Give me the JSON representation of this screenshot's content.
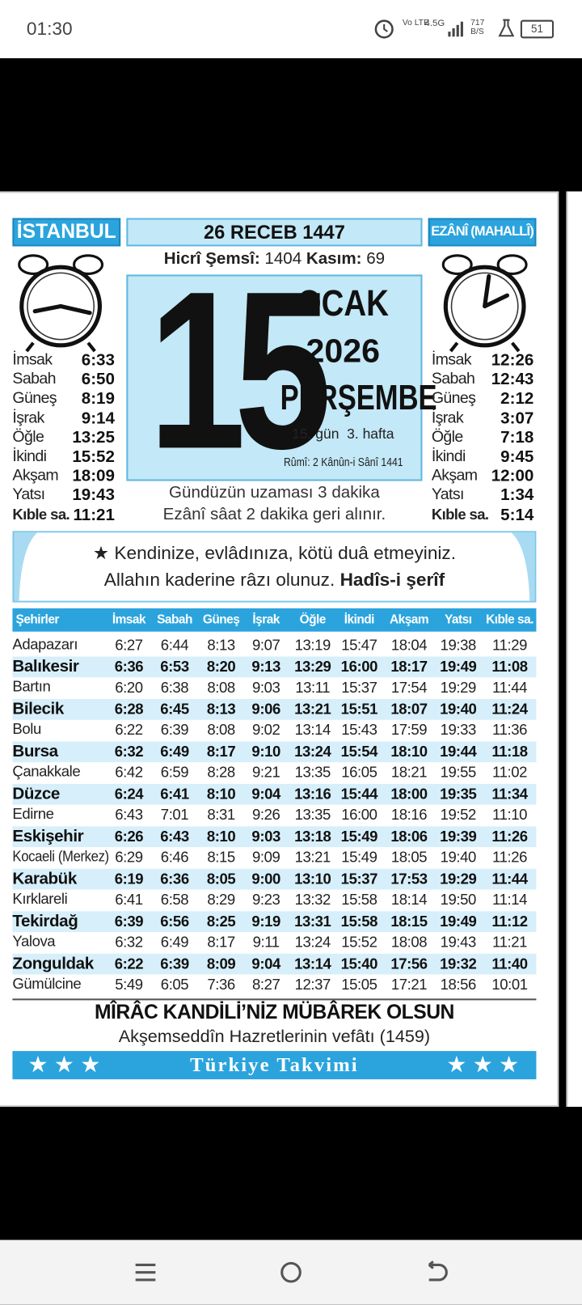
{
  "status_bar": {
    "time": "01:30",
    "network": "Vo LTE",
    "signal": "4.5G",
    "speed": "717 B/S",
    "battery": "51"
  },
  "calendar": {
    "city": "İSTANBUL",
    "hijri_date": "26 RECEB 1447",
    "ezani": "EZÂNÎ (MAHALLÎ)",
    "hicri_semsi_label": "Hicrî Şemsî:",
    "hicri_semsi": "1404",
    "kasim_label": "Kasım:",
    "kasim": "69",
    "day": "15",
    "month": "OCAK",
    "year": "2026",
    "weekday": "PERŞEMBE",
    "day_info": "15. gün  3. hafta",
    "rumi": "Rûmî: 2 Kânûn-i Sânî 1441",
    "left_times": [
      [
        "İmsak",
        "6:33"
      ],
      [
        "Sabah",
        "6:50"
      ],
      [
        "Güneş",
        "8:19"
      ],
      [
        "İşrak",
        "9:14"
      ],
      [
        "Öğle",
        "13:25"
      ],
      [
        "İkindi",
        "15:52"
      ],
      [
        "Akşam",
        "18:09"
      ],
      [
        "Yatsı",
        "19:43"
      ]
    ],
    "left_kible": [
      "Kıble sa.",
      "11:21"
    ],
    "right_times": [
      [
        "İmsak",
        "12:26"
      ],
      [
        "Sabah",
        "12:43"
      ],
      [
        "Güneş",
        "2:12"
      ],
      [
        "İşrak",
        "3:07"
      ],
      [
        "Öğle",
        "7:18"
      ],
      [
        "İkindi",
        "9:45"
      ],
      [
        "Akşam",
        "12:00"
      ],
      [
        "Yatsı",
        "1:34"
      ]
    ],
    "right_kible": [
      "Kıble sa.",
      "5:14"
    ],
    "notes": [
      "Gündüzün uzaması 3 dakika",
      "Ezânî sâat 2 dakika geri alınır."
    ],
    "quote_line1": "★ Kendinize, evlâdınıza, kötü duâ etmeyiniz.",
    "quote_line2": "Allahın kaderine râzı olunuz.",
    "quote_source": "Hadîs-i şerîf",
    "table": {
      "header": [
        "Şehirler",
        "İmsak",
        "Sabah",
        "Güneş",
        "İşrak",
        "Öğle",
        "İkindi",
        "Akşam",
        "Yatsı",
        "Kıble sa."
      ],
      "rows": [
        [
          "Adapazarı",
          "6:27",
          "6:44",
          "8:13",
          "9:07",
          "13:19",
          "15:47",
          "18:04",
          "19:38",
          "11:29"
        ],
        [
          "Balıkesir",
          "6:36",
          "6:53",
          "8:20",
          "9:13",
          "13:29",
          "16:00",
          "18:17",
          "19:49",
          "11:08"
        ],
        [
          "Bartın",
          "6:20",
          "6:38",
          "8:08",
          "9:03",
          "13:11",
          "15:37",
          "17:54",
          "19:29",
          "11:44"
        ],
        [
          "Bilecik",
          "6:28",
          "6:45",
          "8:13",
          "9:06",
          "13:21",
          "15:51",
          "18:07",
          "19:40",
          "11:24"
        ],
        [
          "Bolu",
          "6:22",
          "6:39",
          "8:08",
          "9:02",
          "13:14",
          "15:43",
          "17:59",
          "19:33",
          "11:36"
        ],
        [
          "Bursa",
          "6:32",
          "6:49",
          "8:17",
          "9:10",
          "13:24",
          "15:54",
          "18:10",
          "19:44",
          "11:18"
        ],
        [
          "Çanakkale",
          "6:42",
          "6:59",
          "8:28",
          "9:21",
          "13:35",
          "16:05",
          "18:21",
          "19:55",
          "11:02"
        ],
        [
          "Düzce",
          "6:24",
          "6:41",
          "8:10",
          "9:04",
          "13:16",
          "15:44",
          "18:00",
          "19:35",
          "11:34"
        ],
        [
          "Edirne",
          "6:43",
          "7:01",
          "8:31",
          "9:26",
          "13:35",
          "16:00",
          "18:16",
          "19:52",
          "11:10"
        ],
        [
          "Eskişehir",
          "6:26",
          "6:43",
          "8:10",
          "9:03",
          "13:18",
          "15:49",
          "18:06",
          "19:39",
          "11:26"
        ],
        [
          "Kocaeli (Merkez)",
          "6:29",
          "6:46",
          "8:15",
          "9:09",
          "13:21",
          "15:49",
          "18:05",
          "19:40",
          "11:26"
        ],
        [
          "Karabük",
          "6:19",
          "6:36",
          "8:05",
          "9:00",
          "13:10",
          "15:37",
          "17:53",
          "19:29",
          "11:44"
        ],
        [
          "Kırklareli",
          "6:41",
          "6:58",
          "8:29",
          "9:23",
          "13:32",
          "15:58",
          "18:14",
          "19:50",
          "11:14"
        ],
        [
          "Tekirdağ",
          "6:39",
          "6:56",
          "8:25",
          "9:19",
          "13:31",
          "15:58",
          "18:15",
          "19:49",
          "11:12"
        ],
        [
          "Yalova",
          "6:32",
          "6:49",
          "8:17",
          "9:11",
          "13:24",
          "15:52",
          "18:08",
          "19:43",
          "11:21"
        ],
        [
          "Zonguldak",
          "6:22",
          "6:39",
          "8:09",
          "9:04",
          "13:14",
          "15:40",
          "17:56",
          "19:32",
          "11:40"
        ],
        [
          "Gümülcine",
          "5:49",
          "6:05",
          "7:36",
          "8:27",
          "12:37",
          "15:05",
          "17:21",
          "18:56",
          "10:01"
        ]
      ]
    },
    "footer_title": "MÎRÂC KANDİLİ’NİZ MÜBÂREK OLSUN",
    "footer_subtitle": "Akşemseddîn Hazretlerinin vefâtı (1459)",
    "brand": "Türkiye Takvimi"
  }
}
